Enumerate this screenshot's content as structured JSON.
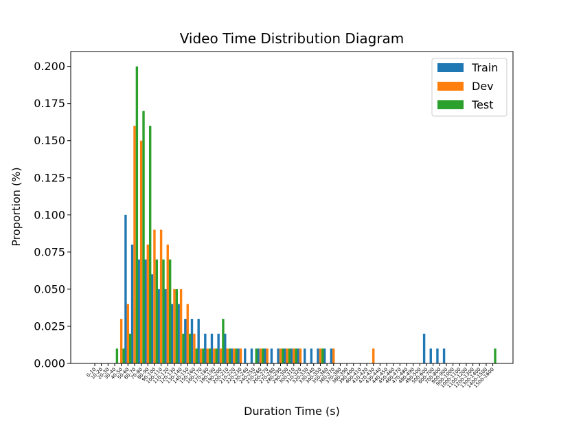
{
  "chart_data": {
    "type": "bar",
    "title": "Video Time Distribution Diagram",
    "xlabel": "Duration Time (s)",
    "ylabel": "Proportion (%)",
    "ylim": [
      0,
      0.21
    ],
    "yticks": [
      "0.000",
      "0.025",
      "0.050",
      "0.075",
      "0.100",
      "0.125",
      "0.150",
      "0.175",
      "0.200"
    ],
    "grid": false,
    "legend_position": "top-right",
    "categories": [
      "0-10",
      "10-20",
      "20-30",
      "30-40",
      "40-50",
      "50-60",
      "60-70",
      "70-80",
      "80-90",
      "90-100",
      "100-110",
      "110-120",
      "120-130",
      "130-140",
      "140-150",
      "150-160",
      "160-170",
      "170-180",
      "180-190",
      "190-200",
      "200-210",
      "210-220",
      "220-230",
      "230-240",
      "240-250",
      "250-260",
      "260-270",
      "270-280",
      "280-290",
      "290-300",
      "300-310",
      "310-320",
      "320-330",
      "330-340",
      "340-350",
      "350-360",
      "360-370",
      "370-380",
      "380-390",
      "390-400",
      "400-410",
      "410-420",
      "420-430",
      "430-440",
      "440-450",
      "450-460",
      "460-470",
      "470-480",
      "480-490",
      "490-500",
      "500-600",
      "600-700",
      "700-800",
      "800-900",
      "900-1000",
      "1000-1100",
      "1100-1200",
      "1200-1300",
      "1300-1400",
      "1400-1500",
      "1500-1600"
    ],
    "series": [
      {
        "name": "Train",
        "color": "#1f77b4",
        "values": [
          0,
          0,
          0,
          0,
          0,
          0.1,
          0.08,
          0.07,
          0.07,
          0.06,
          0.05,
          0.05,
          0.04,
          0.04,
          0.03,
          0.03,
          0.03,
          0.02,
          0.02,
          0.02,
          0.02,
          0.01,
          0.01,
          0.01,
          0.01,
          0.01,
          0.01,
          0.01,
          0.01,
          0.01,
          0.01,
          0.01,
          0.01,
          0.01,
          0.01,
          0.01,
          0.01,
          0,
          0,
          0,
          0,
          0,
          0,
          0,
          0,
          0,
          0,
          0,
          0,
          0,
          0.02,
          0.01,
          0.01,
          0.01,
          0,
          0,
          0,
          0,
          0,
          0,
          0
        ]
      },
      {
        "name": "Dev",
        "color": "#ff7f0e",
        "values": [
          0,
          0,
          0,
          0,
          0.03,
          0.04,
          0.16,
          0.15,
          0.08,
          0.09,
          0.09,
          0.08,
          0.05,
          0.05,
          0.04,
          0.02,
          0.01,
          0.01,
          0.01,
          0.01,
          0.01,
          0.01,
          0.01,
          0,
          0,
          0.01,
          0.01,
          0,
          0.01,
          0.01,
          0.01,
          0.01,
          0,
          0,
          0.01,
          0,
          0.01,
          0,
          0,
          0,
          0,
          0,
          0.01,
          0,
          0,
          0,
          0,
          0,
          0,
          0,
          0,
          0,
          0,
          0,
          0,
          0,
          0,
          0,
          0,
          0,
          0
        ]
      },
      {
        "name": "Test",
        "color": "#2ca02c",
        "values": [
          0,
          0,
          0,
          0.01,
          0.01,
          0.02,
          0.2,
          0.17,
          0.16,
          0.07,
          0.07,
          0.07,
          0.05,
          0.02,
          0.02,
          0.01,
          0.01,
          0.01,
          0.01,
          0.03,
          0.01,
          0.01,
          0,
          0,
          0.01,
          0.01,
          0,
          0,
          0.01,
          0.01,
          0.01,
          0,
          0,
          0,
          0.01,
          0,
          0,
          0,
          0,
          0,
          0,
          0,
          0,
          0,
          0,
          0,
          0,
          0,
          0,
          0,
          0,
          0,
          0,
          0,
          0,
          0,
          0,
          0,
          0,
          0,
          0.01
        ]
      }
    ]
  }
}
